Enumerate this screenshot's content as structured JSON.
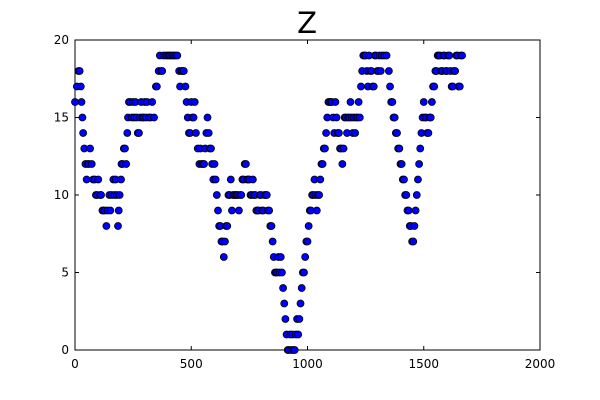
{
  "chart_data": {
    "type": "scatter",
    "title": "Z",
    "xlabel": "",
    "ylabel": "",
    "xlim": [
      0,
      2000
    ],
    "ylim": [
      0,
      20
    ],
    "xticks": [
      0,
      500,
      1000,
      1500,
      2000
    ],
    "yticks": [
      0,
      5,
      10,
      15,
      20
    ],
    "xtick_labels": [
      "0",
      "500",
      "1000",
      "1500",
      "2000"
    ],
    "ytick_labels": [
      "0",
      "5",
      "10",
      "15",
      "20"
    ],
    "grid": false,
    "legend": "none",
    "marker_color": "#0000ff",
    "marker_edge_color": "#000000",
    "series": [
      {
        "points": [
          [
            0,
            16
          ],
          [
            8,
            17
          ],
          [
            15,
            18
          ],
          [
            20,
            18
          ],
          [
            25,
            17
          ],
          [
            28,
            16
          ],
          [
            32,
            15
          ],
          [
            35,
            14
          ],
          [
            40,
            13
          ],
          [
            45,
            12
          ],
          [
            50,
            11
          ],
          [
            55,
            12
          ],
          [
            60,
            12
          ],
          [
            65,
            13
          ],
          [
            72,
            12
          ],
          [
            78,
            11
          ],
          [
            85,
            11
          ],
          [
            90,
            10
          ],
          [
            95,
            10
          ],
          [
            100,
            11
          ],
          [
            108,
            10
          ],
          [
            112,
            10
          ],
          [
            118,
            9
          ],
          [
            122,
            9
          ],
          [
            128,
            9
          ],
          [
            135,
            8
          ],
          [
            140,
            9
          ],
          [
            148,
            10
          ],
          [
            152,
            9
          ],
          [
            158,
            10
          ],
          [
            165,
            11
          ],
          [
            170,
            10
          ],
          [
            175,
            11
          ],
          [
            180,
            10
          ],
          [
            185,
            8
          ],
          [
            188,
            9
          ],
          [
            192,
            10
          ],
          [
            198,
            11
          ],
          [
            200,
            12
          ],
          [
            205,
            12
          ],
          [
            210,
            13
          ],
          [
            215,
            13
          ],
          [
            220,
            12
          ],
          [
            225,
            14
          ],
          [
            228,
            15
          ],
          [
            232,
            16
          ],
          [
            238,
            16
          ],
          [
            245,
            15
          ],
          [
            250,
            16
          ],
          [
            255,
            15
          ],
          [
            260,
            16
          ],
          [
            265,
            15
          ],
          [
            270,
            14
          ],
          [
            275,
            14
          ],
          [
            280,
            15
          ],
          [
            285,
            16
          ],
          [
            290,
            15
          ],
          [
            295,
            15
          ],
          [
            300,
            16
          ],
          [
            305,
            15
          ],
          [
            310,
            16
          ],
          [
            318,
            15
          ],
          [
            325,
            15
          ],
          [
            332,
            16
          ],
          [
            340,
            15
          ],
          [
            348,
            17
          ],
          [
            352,
            17
          ],
          [
            360,
            18
          ],
          [
            365,
            19
          ],
          [
            370,
            18
          ],
          [
            375,
            18
          ],
          [
            380,
            19
          ],
          [
            390,
            19
          ],
          [
            398,
            19
          ],
          [
            405,
            19
          ],
          [
            410,
            19
          ],
          [
            418,
            19
          ],
          [
            425,
            19
          ],
          [
            432,
            19
          ],
          [
            440,
            19
          ],
          [
            448,
            18
          ],
          [
            452,
            17
          ],
          [
            458,
            18
          ],
          [
            462,
            18
          ],
          [
            468,
            18
          ],
          [
            475,
            17
          ],
          [
            480,
            16
          ],
          [
            485,
            15
          ],
          [
            490,
            14
          ],
          [
            495,
            14
          ],
          [
            500,
            16
          ],
          [
            505,
            15
          ],
          [
            510,
            15
          ],
          [
            515,
            16
          ],
          [
            520,
            14
          ],
          [
            528,
            13
          ],
          [
            535,
            12
          ],
          [
            540,
            13
          ],
          [
            545,
            12
          ],
          [
            550,
            12
          ],
          [
            555,
            12
          ],
          [
            560,
            13
          ],
          [
            565,
            14
          ],
          [
            570,
            15
          ],
          [
            575,
            14
          ],
          [
            580,
            13
          ],
          [
            585,
            13
          ],
          [
            590,
            12
          ],
          [
            595,
            11
          ],
          [
            600,
            12
          ],
          [
            605,
            11
          ],
          [
            610,
            10
          ],
          [
            615,
            9
          ],
          [
            620,
            8
          ],
          [
            625,
            8
          ],
          [
            630,
            7
          ],
          [
            635,
            7
          ],
          [
            640,
            6
          ],
          [
            645,
            7
          ],
          [
            650,
            8
          ],
          [
            655,
            8
          ],
          [
            660,
            10
          ],
          [
            665,
            10
          ],
          [
            670,
            11
          ],
          [
            675,
            9
          ],
          [
            680,
            10
          ],
          [
            685,
            10
          ],
          [
            690,
            10
          ],
          [
            695,
            10
          ],
          [
            700,
            10
          ],
          [
            705,
            9
          ],
          [
            710,
            10
          ],
          [
            715,
            10
          ],
          [
            720,
            11
          ],
          [
            725,
            11
          ],
          [
            730,
            12
          ],
          [
            735,
            12
          ],
          [
            740,
            11
          ],
          [
            745,
            11
          ],
          [
            750,
            11
          ],
          [
            755,
            10
          ],
          [
            760,
            10
          ],
          [
            765,
            11
          ],
          [
            770,
            10
          ],
          [
            775,
            10
          ],
          [
            780,
            9
          ],
          [
            785,
            9
          ],
          [
            790,
            9
          ],
          [
            795,
            10
          ],
          [
            800,
            10
          ],
          [
            805,
            9
          ],
          [
            810,
            9
          ],
          [
            815,
            10
          ],
          [
            820,
            10
          ],
          [
            825,
            10
          ],
          [
            830,
            9
          ],
          [
            835,
            9
          ],
          [
            840,
            8
          ],
          [
            845,
            8
          ],
          [
            850,
            7
          ],
          [
            855,
            6
          ],
          [
            860,
            5
          ],
          [
            865,
            5
          ],
          [
            870,
            5
          ],
          [
            875,
            6
          ],
          [
            880,
            5
          ],
          [
            885,
            6
          ],
          [
            890,
            5
          ],
          [
            895,
            4
          ],
          [
            900,
            3
          ],
          [
            905,
            2
          ],
          [
            910,
            1
          ],
          [
            915,
            0
          ],
          [
            920,
            0
          ],
          [
            925,
            1
          ],
          [
            930,
            0
          ],
          [
            935,
            1
          ],
          [
            940,
            0
          ],
          [
            945,
            0
          ],
          [
            950,
            1
          ],
          [
            955,
            2
          ],
          [
            960,
            1
          ],
          [
            965,
            2
          ],
          [
            970,
            3
          ],
          [
            975,
            4
          ],
          [
            980,
            5
          ],
          [
            985,
            5
          ],
          [
            990,
            6
          ],
          [
            995,
            7
          ],
          [
            1000,
            7
          ],
          [
            1005,
            8
          ],
          [
            1010,
            9
          ],
          [
            1015,
            9
          ],
          [
            1020,
            10
          ],
          [
            1025,
            10
          ],
          [
            1030,
            11
          ],
          [
            1035,
            10
          ],
          [
            1040,
            9
          ],
          [
            1045,
            10
          ],
          [
            1050,
            10
          ],
          [
            1055,
            11
          ],
          [
            1060,
            12
          ],
          [
            1065,
            12
          ],
          [
            1070,
            13
          ],
          [
            1075,
            13
          ],
          [
            1080,
            14
          ],
          [
            1085,
            15
          ],
          [
            1090,
            16
          ],
          [
            1095,
            16
          ],
          [
            1100,
            16
          ],
          [
            1105,
            16
          ],
          [
            1110,
            15
          ],
          [
            1115,
            14
          ],
          [
            1120,
            16
          ],
          [
            1125,
            15
          ],
          [
            1130,
            14
          ],
          [
            1135,
            14
          ],
          [
            1140,
            13
          ],
          [
            1145,
            13
          ],
          [
            1150,
            12
          ],
          [
            1155,
            13
          ],
          [
            1160,
            15
          ],
          [
            1165,
            15
          ],
          [
            1170,
            14
          ],
          [
            1175,
            15
          ],
          [
            1180,
            15
          ],
          [
            1185,
            16
          ],
          [
            1190,
            15
          ],
          [
            1195,
            14
          ],
          [
            1200,
            15
          ],
          [
            1205,
            14
          ],
          [
            1210,
            15
          ],
          [
            1215,
            15
          ],
          [
            1220,
            16
          ],
          [
            1225,
            15
          ],
          [
            1230,
            17
          ],
          [
            1235,
            18
          ],
          [
            1240,
            19
          ],
          [
            1245,
            19
          ],
          [
            1250,
            19
          ],
          [
            1255,
            18
          ],
          [
            1260,
            17
          ],
          [
            1265,
            19
          ],
          [
            1270,
            18
          ],
          [
            1275,
            18
          ],
          [
            1280,
            17
          ],
          [
            1285,
            17
          ],
          [
            1290,
            19
          ],
          [
            1295,
            19
          ],
          [
            1300,
            18
          ],
          [
            1305,
            18
          ],
          [
            1310,
            19
          ],
          [
            1315,
            18
          ],
          [
            1320,
            19
          ],
          [
            1330,
            19
          ],
          [
            1340,
            19
          ],
          [
            1350,
            18
          ],
          [
            1355,
            17
          ],
          [
            1360,
            16
          ],
          [
            1365,
            16
          ],
          [
            1370,
            15
          ],
          [
            1375,
            15
          ],
          [
            1380,
            14
          ],
          [
            1385,
            14
          ],
          [
            1390,
            13
          ],
          [
            1395,
            13
          ],
          [
            1400,
            12
          ],
          [
            1405,
            12
          ],
          [
            1410,
            11
          ],
          [
            1415,
            11
          ],
          [
            1420,
            10
          ],
          [
            1425,
            10
          ],
          [
            1430,
            9
          ],
          [
            1435,
            9
          ],
          [
            1440,
            8
          ],
          [
            1445,
            8
          ],
          [
            1450,
            7
          ],
          [
            1455,
            7
          ],
          [
            1460,
            8
          ],
          [
            1465,
            9
          ],
          [
            1470,
            10
          ],
          [
            1475,
            11
          ],
          [
            1480,
            12
          ],
          [
            1485,
            13
          ],
          [
            1490,
            14
          ],
          [
            1495,
            15
          ],
          [
            1500,
            16
          ],
          [
            1505,
            15
          ],
          [
            1510,
            15
          ],
          [
            1515,
            14
          ],
          [
            1520,
            14
          ],
          [
            1525,
            15
          ],
          [
            1530,
            15
          ],
          [
            1535,
            16
          ],
          [
            1540,
            17
          ],
          [
            1545,
            17
          ],
          [
            1550,
            18
          ],
          [
            1555,
            18
          ],
          [
            1560,
            19
          ],
          [
            1565,
            19
          ],
          [
            1570,
            19
          ],
          [
            1575,
            18
          ],
          [
            1580,
            18
          ],
          [
            1585,
            19
          ],
          [
            1590,
            19
          ],
          [
            1595,
            18
          ],
          [
            1600,
            18
          ],
          [
            1605,
            19
          ],
          [
            1610,
            19
          ],
          [
            1615,
            18
          ],
          [
            1620,
            17
          ],
          [
            1625,
            17
          ],
          [
            1630,
            18
          ],
          [
            1635,
            18
          ],
          [
            1640,
            19
          ],
          [
            1645,
            19
          ],
          [
            1650,
            17
          ],
          [
            1655,
            17
          ],
          [
            1660,
            19
          ],
          [
            1665,
            19
          ]
        ]
      }
    ]
  }
}
